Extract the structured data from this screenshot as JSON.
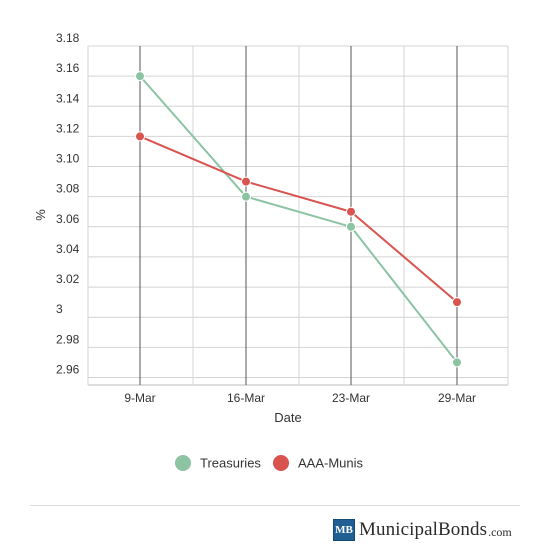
{
  "chart_data": {
    "type": "line",
    "title": "",
    "xlabel": "Date",
    "ylabel": "%",
    "categories": [
      "9-Mar",
      "16-Mar",
      "23-Mar",
      "29-Mar"
    ],
    "y_ticks": [
      "3.18",
      "3.16",
      "3.14",
      "3.12",
      "3.10",
      "3.08",
      "3.06",
      "3.04",
      "3.02",
      "3",
      "2.98",
      "2.96"
    ],
    "ylim": [
      2.955,
      3.18
    ],
    "grid": true,
    "legend_position": "bottom",
    "series": [
      {
        "name": "Treasuries",
        "color": "#8cc4a3",
        "values": [
          3.16,
          3.08,
          3.06,
          2.97
        ]
      },
      {
        "name": "AAA-Munis",
        "color": "#d9534f",
        "values": [
          3.12,
          3.09,
          3.07,
          3.01
        ]
      }
    ]
  },
  "footer": {
    "brand_mark": "MB",
    "brand_name": "MunicipalBonds",
    "brand_tld": ".com"
  }
}
